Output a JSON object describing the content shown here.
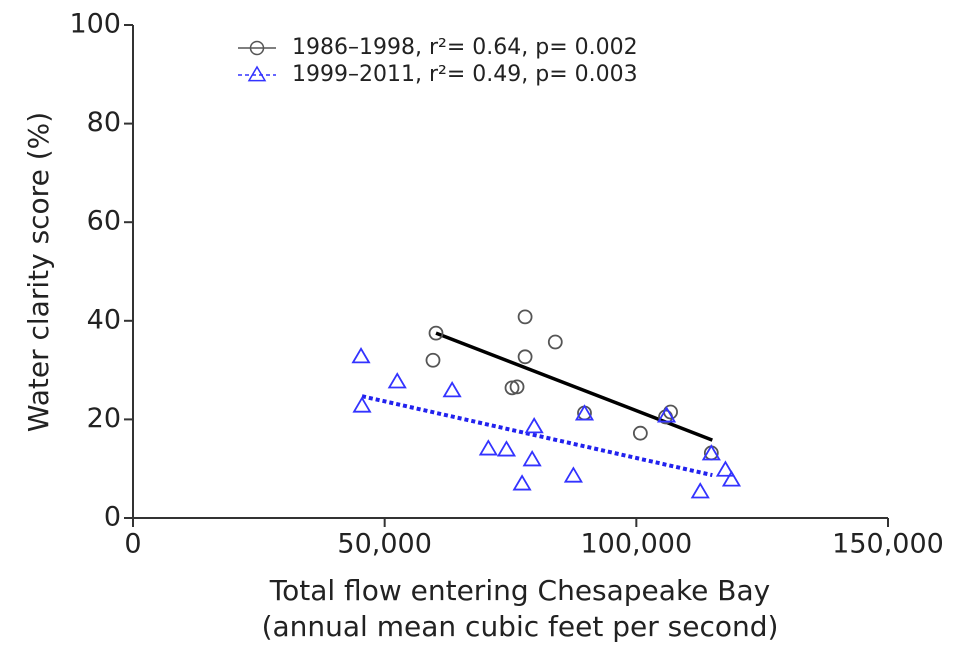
{
  "chart_data": {
    "type": "scatter",
    "xlabel": [
      "Total flow entering Chesapeake Bay",
      "(annual mean cubic feet per second)"
    ],
    "ylabel": "Water clarity score (%)",
    "xlim": [
      0,
      150000
    ],
    "xticks": [
      0,
      {
        "value": 50000,
        "label": "50,000"
      },
      {
        "value": 100000,
        "label": "100,000"
      },
      {
        "value": 150000,
        "label": "150,000"
      }
    ],
    "ylim": [
      0,
      100
    ],
    "yticks": [
      0,
      20,
      40,
      60,
      80,
      100
    ],
    "legend": "upper left",
    "series": [
      {
        "name": "1986–1998, r²= 0.64, p= 0.002",
        "color": "#555555",
        "marker": "circle",
        "fit_color": "#000000",
        "fit_style": "solid",
        "x": [
          59600,
          60200,
          77900,
          77900,
          75300,
          76300,
          83900,
          89700,
          100800,
          105800,
          106800,
          114900
        ],
        "values": [
          32.0,
          37.5,
          40.8,
          32.7,
          26.4,
          26.6,
          35.7,
          21.3,
          17.2,
          20.5,
          21.5,
          13.2
        ],
        "fit": {
          "x": [
            60200,
            115100
          ],
          "values": [
            37.5,
            15.8
          ]
        }
      },
      {
        "name": "1999–2011, r²= 0.49, p= 0.003",
        "color": "#3333ff",
        "marker": "triangle",
        "fit_color": "#2222ee",
        "fit_style": "dotted",
        "x": [
          45300,
          45500,
          52500,
          63400,
          70600,
          74200,
          77300,
          79700,
          79300,
          87500,
          89700,
          106000,
          114900,
          112700,
          117700,
          118900
        ],
        "values": [
          32.7,
          22.7,
          27.6,
          25.8,
          14.0,
          13.8,
          6.9,
          18.5,
          11.8,
          8.5,
          21.1,
          20.7,
          13.0,
          5.3,
          9.7,
          7.7
        ],
        "fit": {
          "x": [
            45500,
            115100
          ],
          "values": [
            24.7,
            8.7
          ]
        }
      }
    ]
  }
}
